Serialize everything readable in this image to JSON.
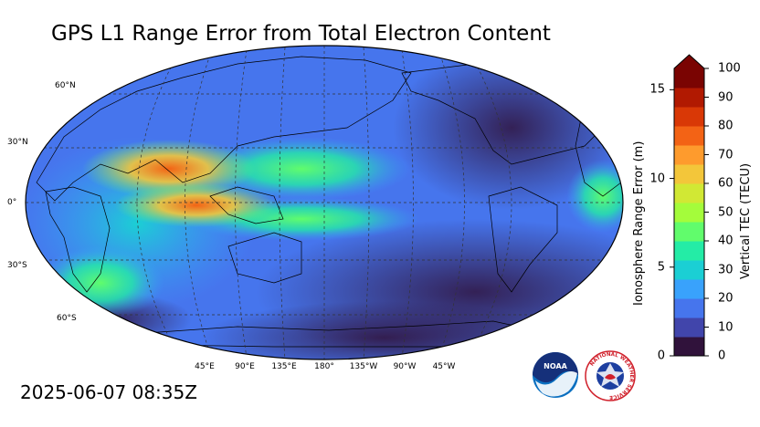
{
  "title": "GPS L1 Range Error from Total Electron Content",
  "timestamp": "2025-06-07 08:35Z",
  "map": {
    "lat_labels": [
      "60°N",
      "30°N",
      "0°",
      "30°S",
      "60°S"
    ],
    "lon_labels": [
      "45°E",
      "90°E",
      "135°E",
      "180°",
      "135°W",
      "90°W",
      "45°W"
    ],
    "ocean_colors": {
      "low": "#3b3f9e",
      "mid": "#2f77e6",
      "high": "#f26b1f"
    }
  },
  "colorbar": {
    "left_title": "Ionosphere Range Error (m)",
    "right_title": "Vertical TEC (TECU)",
    "left_ticks": [
      "0",
      "5",
      "10",
      "15"
    ],
    "right_ticks": [
      "0",
      "10",
      "20",
      "30",
      "40",
      "50",
      "60",
      "70",
      "80",
      "90",
      "100"
    ],
    "tec_range": [
      0,
      100
    ],
    "range_error_range": [
      0,
      16.2
    ],
    "extend": "max",
    "colors": [
      "#30123b",
      "#4145ab",
      "#4675ed",
      "#39a2fc",
      "#1bcfd4",
      "#24eca6",
      "#61fc6c",
      "#a4fc3b",
      "#d1e834",
      "#f3c63a",
      "#fe9b2d",
      "#f36315",
      "#d93806",
      "#b11901",
      "#7a0402"
    ]
  },
  "logos": {
    "noaa": "NOAA",
    "nws": "NATIONAL WEATHER SERVICE"
  }
}
